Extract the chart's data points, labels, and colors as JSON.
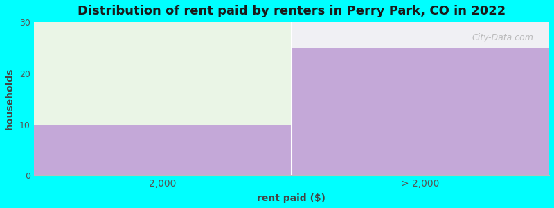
{
  "categories": [
    "2,000",
    "> 2,000"
  ],
  "values": [
    10,
    25
  ],
  "bar_color": "#c4a8d8",
  "light_green_color": "#eaf5e6",
  "top_white_color": "#f0f0f4",
  "background_color": "#00ffff",
  "plot_bg_color": "#ffffff",
  "title": "Distribution of rent paid by renters in Perry Park, CO in 2022",
  "xlabel": "rent paid ($)",
  "ylabel": "households",
  "ylim": [
    0,
    30
  ],
  "yticks": [
    0,
    10,
    20,
    30
  ],
  "title_fontsize": 13,
  "axis_label_fontsize": 10,
  "watermark": "City-Data.com"
}
